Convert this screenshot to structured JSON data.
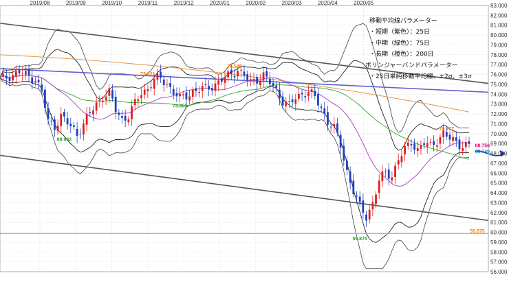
{
  "chart_data": {
    "type": "line",
    "x_ticks": [
      "2019/08",
      "2019/09",
      "2019/10",
      "2019/11",
      "2019/12",
      "2020/01",
      "2020/02",
      "2020/03",
      "2020/04",
      "2020/05"
    ],
    "ylim": [
      56.0,
      83.0
    ],
    "y_ticks": [
      "56.000",
      "57.000",
      "58.000",
      "59.000",
      "60.000",
      "61.000",
      "62.000",
      "63.000",
      "64.000",
      "65.000",
      "66.000",
      "67.000",
      "68.000",
      "69.000",
      "70.000",
      "71.000",
      "72.000",
      "73.000",
      "74.000",
      "75.000",
      "76.000",
      "77.000",
      "78.000",
      "79.000",
      "80.000",
      "81.000",
      "82.000",
      "83.000"
    ],
    "grid": true,
    "notes": [
      "移動平均線パラメーター",
      "・短期（紫色）：25日",
      "・中期（緑色）：75日",
      "・長期（橙色）：200日",
      "ボリンジャーバンドパラメーター",
      "・25日単純移動平均線、±2σ、±3σ"
    ],
    "annotations": [
      {
        "text": "69.962",
        "x": "2019/08",
        "y": 69.96,
        "color": "#2ca02c"
      },
      {
        "text": "73.621",
        "x": "2019/10",
        "y": 75.7,
        "color": "#ff7f0e"
      },
      {
        "text": "73.355",
        "x": "2019/11",
        "y": 73.36,
        "color": "#2ca02c"
      },
      {
        "text": "76.540",
        "x": "2019/12",
        "y": 76.54,
        "color": "#ff7f0e"
      },
      {
        "text": "70.177",
        "x": "2020/05",
        "y": 70.18,
        "color": "#ff7f0e"
      },
      {
        "text": "68.756",
        "x": "2020/05",
        "y": 68.76,
        "color": "#e6007e"
      },
      {
        "text": "68.749",
        "x": "2020/05",
        "y": 68.75,
        "color": "#00a0c8"
      },
      {
        "text": "59.875",
        "x": "2020/03",
        "y": 59.88,
        "color": "#2ca02c"
      },
      {
        "text": "59.875",
        "x": "2020/05",
        "y": 59.88,
        "color": "#ff7f0e"
      }
    ],
    "support_line": 59.875,
    "channel_upper": {
      "start": 81.2,
      "end": 75.1
    },
    "channel_mid": {
      "start": 76.6,
      "end": 74.2
    },
    "channel_lower": {
      "start": 67.8,
      "end": 61.2
    },
    "price_path": [
      [
        0,
        75.4
      ],
      [
        3,
        75.9
      ],
      [
        6,
        76.2
      ],
      [
        8,
        75.9
      ],
      [
        11,
        75.6
      ],
      [
        13,
        74.2
      ],
      [
        15,
        71.2
      ],
      [
        17,
        70.8
      ],
      [
        19,
        71.8
      ],
      [
        21,
        71.0
      ],
      [
        23,
        70.4
      ],
      [
        24,
        70.0
      ],
      [
        26,
        71.0
      ],
      [
        28,
        72.0
      ],
      [
        30,
        73.0
      ],
      [
        32,
        73.8
      ],
      [
        34,
        74.1
      ],
      [
        36,
        72.4
      ],
      [
        38,
        71.5
      ],
      [
        40,
        71.8
      ],
      [
        42,
        73.0
      ],
      [
        44,
        74.2
      ],
      [
        46,
        74.6
      ],
      [
        48,
        75.4
      ],
      [
        50,
        75.6
      ],
      [
        52,
        75.1
      ],
      [
        54,
        74.2
      ],
      [
        56,
        73.5
      ],
      [
        58,
        73.9
      ],
      [
        60,
        74.3
      ],
      [
        62,
        74.4
      ],
      [
        64,
        74.6
      ],
      [
        66,
        74.9
      ],
      [
        68,
        75.2
      ],
      [
        70,
        75.6
      ],
      [
        72,
        76.1
      ],
      [
        74,
        76.5
      ],
      [
        76,
        75.8
      ],
      [
        78,
        75.2
      ],
      [
        80,
        75.6
      ],
      [
        82,
        75.9
      ],
      [
        84,
        75.1
      ],
      [
        86,
        74.4
      ],
      [
        88,
        73.4
      ],
      [
        90,
        72.8
      ],
      [
        92,
        73.6
      ],
      [
        94,
        74.1
      ],
      [
        96,
        74.3
      ],
      [
        98,
        73.6
      ],
      [
        100,
        72.6
      ],
      [
        102,
        71.3
      ],
      [
        104,
        70.5
      ],
      [
        106,
        68.8
      ],
      [
        108,
        66.2
      ],
      [
        110,
        64.2
      ],
      [
        112,
        62.5
      ],
      [
        114,
        61.6
      ],
      [
        116,
        63.0
      ],
      [
        118,
        65.2
      ],
      [
        120,
        66.0
      ],
      [
        122,
        65.8
      ],
      [
        124,
        67.4
      ],
      [
        126,
        68.3
      ],
      [
        128,
        69.2
      ],
      [
        130,
        68.4
      ],
      [
        132,
        69.0
      ],
      [
        134,
        68.7
      ],
      [
        136,
        69.4
      ],
      [
        138,
        70.0
      ],
      [
        140,
        69.4
      ],
      [
        142,
        69.2
      ],
      [
        144,
        68.8
      ],
      [
        146,
        68.75
      ]
    ],
    "price_x_max": 149,
    "forecast_arrow": true
  }
}
